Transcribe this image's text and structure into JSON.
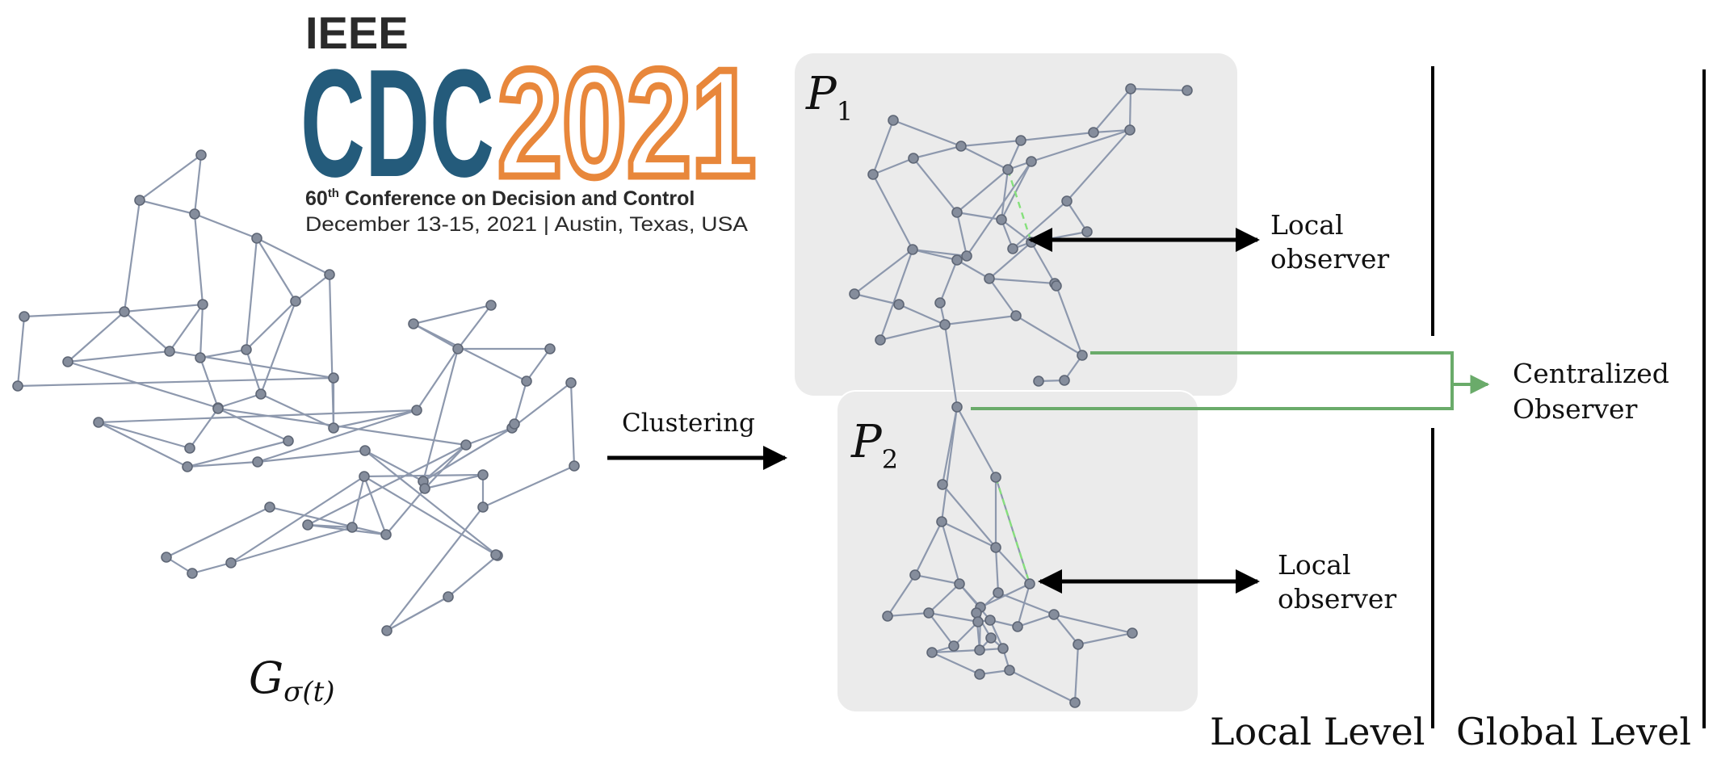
{
  "logo": {
    "org": "IEEE",
    "acronym": "CDC",
    "year": "2021",
    "edition_num": "60",
    "edition_suffix": "th",
    "conference_name": "Conference on Decision and Control",
    "dates_location": "December 13-15, 2021 | Austin, Texas, USA",
    "colors": {
      "blue": "#245b7b",
      "orange": "#e8873b",
      "text": "#2a2a2a"
    }
  },
  "graph_label": {
    "script": "G",
    "subscript": "σ(t)"
  },
  "clustering_label": "Clustering",
  "partitions": [
    {
      "script": "P",
      "subscript": "1"
    },
    {
      "script": "P",
      "subscript": "2"
    }
  ],
  "local_observer_1": {
    "line1": "Local",
    "line2": "observer"
  },
  "local_observer_2": {
    "line1": "Local",
    "line2": "observer"
  },
  "central_observer": {
    "line1": "Centralized",
    "line2": "Observer"
  },
  "level_labels": {
    "local": "Local Level",
    "global": "Global Level"
  },
  "colors": {
    "node": "#858d9c",
    "node_stroke": "#5e6675",
    "edge": "#8d98ad",
    "cluster_bg": "#ebebeb",
    "green": "#6aab6a",
    "dashed_green": "#86e07c",
    "arrow": "#000000"
  }
}
